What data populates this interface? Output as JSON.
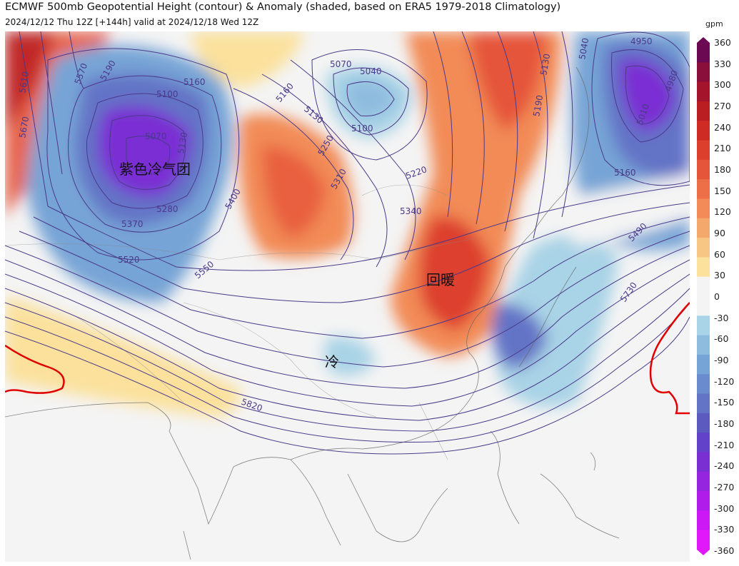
{
  "header": {
    "title": "ECMWF 500mb Geopotential Height (contour) & Anomaly (shaded, based on ERA5 1979-2018 Climatology)",
    "subtitle": "2024/12/12 Thu 12Z [+144h] valid at 2024/12/18 Wed 12Z"
  },
  "map": {
    "annotations": {
      "cold_mass": "紫色冷气团",
      "warming": "回暖",
      "cold": "冷"
    },
    "contour_labels": [
      {
        "id": "c5610",
        "text": "5610"
      },
      {
        "id": "c5670",
        "text": "5670"
      },
      {
        "id": "c5570",
        "text": "5570"
      },
      {
        "id": "c5190",
        "text": "5190"
      },
      {
        "id": "c5160a",
        "text": "5160"
      },
      {
        "id": "c5100a",
        "text": "5100"
      },
      {
        "id": "c5070a",
        "text": "5070"
      },
      {
        "id": "c5130a",
        "text": "5130"
      },
      {
        "id": "c5280",
        "text": "5280"
      },
      {
        "id": "c5370",
        "text": "5370"
      },
      {
        "id": "c5520",
        "text": "5520"
      },
      {
        "id": "c5550",
        "text": "5550"
      },
      {
        "id": "c5400",
        "text": "5400"
      },
      {
        "id": "c5160b",
        "text": "5160"
      },
      {
        "id": "c5130b",
        "text": "5130"
      },
      {
        "id": "c5070b",
        "text": "5070"
      },
      {
        "id": "c5040a",
        "text": "5040"
      },
      {
        "id": "c5100b",
        "text": "5100"
      },
      {
        "id": "c5250",
        "text": "5250"
      },
      {
        "id": "c5310",
        "text": "5310"
      },
      {
        "id": "c5220",
        "text": "5220"
      },
      {
        "id": "c5340",
        "text": "5340"
      },
      {
        "id": "c5130c",
        "text": "5130"
      },
      {
        "id": "c5190b",
        "text": "5190"
      },
      {
        "id": "c5040b",
        "text": "5040"
      },
      {
        "id": "c4950",
        "text": "4950"
      },
      {
        "id": "c4980",
        "text": "4980"
      },
      {
        "id": "c5010",
        "text": "5010"
      },
      {
        "id": "c5160c",
        "text": "5160"
      },
      {
        "id": "c5490",
        "text": "5490"
      },
      {
        "id": "c5730",
        "text": "5730"
      },
      {
        "id": "c5820",
        "text": "5820"
      }
    ]
  },
  "colorbar": {
    "unit": "gpm",
    "ticks": [
      "360",
      "330",
      "300",
      "270",
      "240",
      "210",
      "180",
      "150",
      "120",
      "90",
      "60",
      "30",
      "0",
      "-30",
      "-60",
      "-90",
      "-120",
      "-150",
      "-180",
      "-210",
      "-240",
      "-270",
      "-300",
      "-330",
      "-360"
    ],
    "colors": [
      "#6b0a52",
      "#8a0f3a",
      "#a4142a",
      "#bb1e22",
      "#cf2b25",
      "#dd3f2d",
      "#e5553a",
      "#ed6f47",
      "#f28b57",
      "#f5a86c",
      "#f8c684",
      "#fbe19c",
      "#f4f4f4",
      "#f4f4f4",
      "#a9d3e6",
      "#8ebcdf",
      "#77a4d6",
      "#6a8cce",
      "#6373c6",
      "#5c59bf",
      "#6242c8",
      "#7a2fd3",
      "#9525df",
      "#b01deb",
      "#cc18f5",
      "#e018fa"
    ]
  }
}
